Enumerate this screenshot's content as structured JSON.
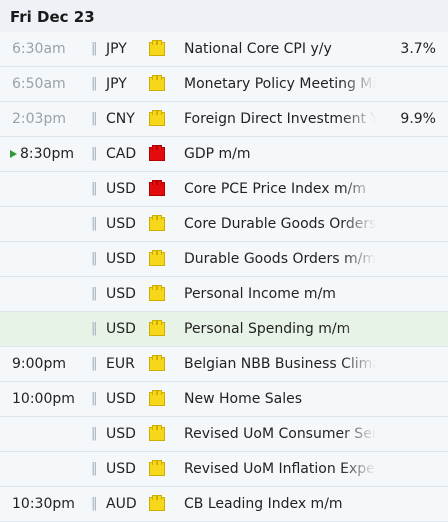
{
  "header": {
    "date": "Fri Dec 23"
  },
  "icons": {
    "sound": "sound-icon",
    "impact_medium": "impact-medium-icon",
    "impact_high": "impact-high-icon",
    "play": "play-icon",
    "impact_medium_color": "#f7d71a",
    "impact_high_color": "#e30b0b"
  },
  "events": [
    {
      "time": "6:30am",
      "currency": "JPY",
      "impact": "medium",
      "title": "National Core CPI y/y",
      "actual": "3.7%",
      "past": true
    },
    {
      "time": "6:50am",
      "currency": "JPY",
      "impact": "medium",
      "title": "Monetary Policy Meeting Mi",
      "actual": "",
      "past": true
    },
    {
      "time": "2:03pm",
      "currency": "CNY",
      "impact": "medium",
      "title": "Foreign Direct Investment Y",
      "actual": "9.9%",
      "past": true
    },
    {
      "time": "8:30pm",
      "currency": "CAD",
      "impact": "high",
      "title": "GDP m/m",
      "actual": "",
      "current": true
    },
    {
      "time": "",
      "currency": "USD",
      "impact": "high",
      "title": "Core PCE Price Index m/m",
      "actual": ""
    },
    {
      "time": "",
      "currency": "USD",
      "impact": "medium",
      "title": "Core Durable Goods Orders",
      "actual": ""
    },
    {
      "time": "",
      "currency": "USD",
      "impact": "medium",
      "title": "Durable Goods Orders m/m",
      "actual": ""
    },
    {
      "time": "",
      "currency": "USD",
      "impact": "medium",
      "title": "Personal Income m/m",
      "actual": ""
    },
    {
      "time": "",
      "currency": "USD",
      "impact": "medium",
      "title": "Personal Spending m/m",
      "actual": "",
      "highlight": true
    },
    {
      "time": "9:00pm",
      "currency": "EUR",
      "impact": "medium",
      "title": "Belgian NBB Business Clima",
      "actual": ""
    },
    {
      "time": "10:00pm",
      "currency": "USD",
      "impact": "medium",
      "title": "New Home Sales",
      "actual": ""
    },
    {
      "time": "",
      "currency": "USD",
      "impact": "medium",
      "title": "Revised UoM Consumer Sen",
      "actual": ""
    },
    {
      "time": "",
      "currency": "USD",
      "impact": "medium",
      "title": "Revised UoM Inflation Expe",
      "actual": ""
    },
    {
      "time": "10:30pm",
      "currency": "AUD",
      "impact": "medium",
      "title": "CB Leading Index m/m",
      "actual": ""
    }
  ]
}
